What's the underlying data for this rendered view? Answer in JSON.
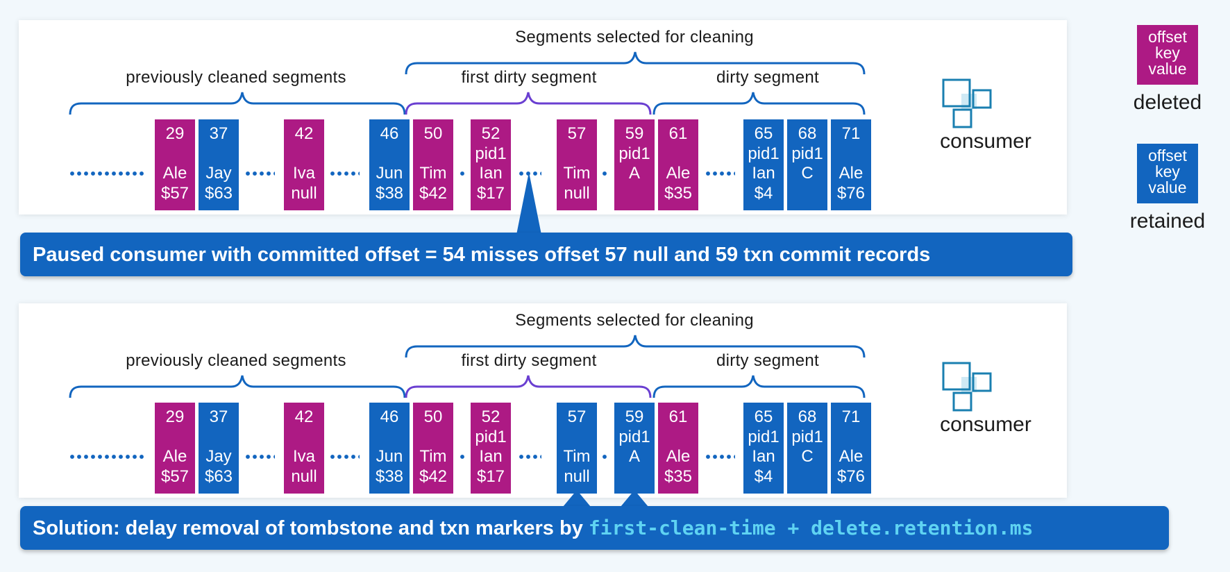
{
  "colors": {
    "deleted": "#ad1a84",
    "retained": "#1265bf",
    "brace": "#1265bf",
    "dirty_brace": "#6a3fd1",
    "code": "#5fd3f2"
  },
  "legend": {
    "box_lines": [
      "offset",
      "key",
      "value"
    ],
    "deleted_label": "deleted",
    "retained_label": "retained"
  },
  "panels": [
    {
      "header": "Segments selected for cleaning",
      "prev_label": "previously cleaned segments",
      "first_dirty_label": "first dirty segment",
      "dirty_label": "dirty segment",
      "consumer_label": "consumer",
      "records": [
        {
          "offset": "29",
          "pid": "",
          "key": "Ale",
          "value": "$57",
          "status": "deleted"
        },
        {
          "offset": "37",
          "pid": "",
          "key": "Jay",
          "value": "$63",
          "status": "retained"
        },
        {
          "offset": "42",
          "pid": "",
          "key": "Iva",
          "value": "null",
          "status": "deleted"
        },
        {
          "offset": "46",
          "pid": "",
          "key": "Jun",
          "value": "$38",
          "status": "retained"
        },
        {
          "offset": "50",
          "pid": "",
          "key": "Tim",
          "value": "$42",
          "status": "deleted"
        },
        {
          "offset": "52",
          "pid": "pid1",
          "key": "Ian",
          "value": "$17",
          "status": "deleted"
        },
        {
          "offset": "57",
          "pid": "",
          "key": "Tim",
          "value": "null",
          "status": "deleted"
        },
        {
          "offset": "59",
          "pid": "pid1",
          "key": "A",
          "value": "",
          "status": "deleted"
        },
        {
          "offset": "61",
          "pid": "",
          "key": "Ale",
          "value": "$35",
          "status": "deleted"
        },
        {
          "offset": "65",
          "pid": "pid1",
          "key": "Ian",
          "value": "$4",
          "status": "retained"
        },
        {
          "offset": "68",
          "pid": "pid1",
          "key": "C",
          "value": "",
          "status": "retained"
        },
        {
          "offset": "71",
          "pid": "",
          "key": "Ale",
          "value": "$76",
          "status": "retained"
        }
      ],
      "callout": {
        "text": "Paused consumer with committed offset = 54 misses offset 57 null and 59 txn commit records",
        "code": ""
      }
    },
    {
      "header": "Segments selected for cleaning",
      "prev_label": "previously cleaned segments",
      "first_dirty_label": "first dirty segment",
      "dirty_label": "dirty segment",
      "consumer_label": "consumer",
      "records": [
        {
          "offset": "29",
          "pid": "",
          "key": "Ale",
          "value": "$57",
          "status": "deleted"
        },
        {
          "offset": "37",
          "pid": "",
          "key": "Jay",
          "value": "$63",
          "status": "retained"
        },
        {
          "offset": "42",
          "pid": "",
          "key": "Iva",
          "value": "null",
          "status": "deleted"
        },
        {
          "offset": "46",
          "pid": "",
          "key": "Jun",
          "value": "$38",
          "status": "retained"
        },
        {
          "offset": "50",
          "pid": "",
          "key": "Tim",
          "value": "$42",
          "status": "deleted"
        },
        {
          "offset": "52",
          "pid": "pid1",
          "key": "Ian",
          "value": "$17",
          "status": "deleted"
        },
        {
          "offset": "57",
          "pid": "",
          "key": "Tim",
          "value": "null",
          "status": "retained"
        },
        {
          "offset": "59",
          "pid": "pid1",
          "key": "A",
          "value": "",
          "status": "retained"
        },
        {
          "offset": "61",
          "pid": "",
          "key": "Ale",
          "value": "$35",
          "status": "deleted"
        },
        {
          "offset": "65",
          "pid": "pid1",
          "key": "Ian",
          "value": "$4",
          "status": "retained"
        },
        {
          "offset": "68",
          "pid": "pid1",
          "key": "C",
          "value": "",
          "status": "retained"
        },
        {
          "offset": "71",
          "pid": "",
          "key": "Ale",
          "value": "$76",
          "status": "retained"
        }
      ],
      "callout": {
        "text": "Solution: delay removal of tombstone and txn markers by ",
        "code": "first-clean-time + delete.retention.ms"
      }
    }
  ]
}
